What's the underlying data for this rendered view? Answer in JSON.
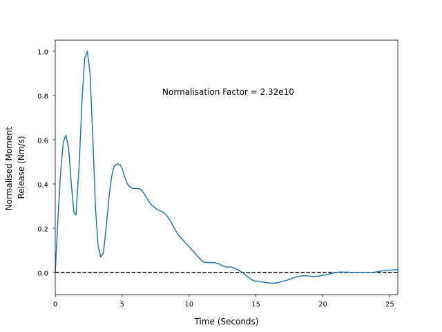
{
  "chart_data": {
    "type": "line",
    "xlabel": "Time (Seconds)",
    "ylabel_lines": [
      "Normalised Moment",
      "Release (Nm/s)"
    ],
    "annotation": "Normalisation Factor = 2.32e10",
    "xlim": [
      0,
      25.6
    ],
    "ylim": [
      -0.1,
      1.05
    ],
    "x_ticks": [
      0,
      5,
      10,
      15,
      20,
      25
    ],
    "x_tick_labels": [
      "0",
      "5",
      "10",
      "15",
      "20",
      "25"
    ],
    "y_ticks": [
      0.0,
      0.2,
      0.4,
      0.6,
      0.8,
      1.0
    ],
    "y_tick_labels": [
      "0.0",
      "0.2",
      "0.4",
      "0.6",
      "0.8",
      "1.0"
    ],
    "grid": false,
    "reference_line": {
      "y": 0,
      "style": "dashed",
      "color": "#000000"
    },
    "series": [
      {
        "color": "#1f77b4",
        "x": [
          0,
          0.2,
          0.4,
          0.6,
          0.8,
          1.0,
          1.2,
          1.4,
          1.55,
          1.8,
          2.0,
          2.2,
          2.4,
          2.6,
          2.8,
          3.0,
          3.2,
          3.4,
          3.6,
          3.8,
          4.0,
          4.2,
          4.4,
          4.6,
          4.8,
          5.0,
          5.2,
          5.4,
          5.6,
          5.8,
          6.0,
          6.2,
          6.4,
          6.6,
          6.8,
          7.0,
          7.2,
          7.4,
          7.6,
          7.8,
          8.0,
          8.3,
          8.6,
          8.9,
          9.2,
          9.5,
          9.8,
          10.1,
          10.4,
          10.7,
          11.0,
          11.3,
          11.6,
          11.9,
          12.2,
          12.5,
          12.8,
          13.1,
          13.4,
          13.7,
          14.0,
          14.3,
          14.6,
          14.9,
          15.2,
          15.5,
          15.8,
          16.1,
          16.4,
          16.7,
          17.0,
          17.3,
          17.6,
          17.9,
          18.2,
          18.5,
          18.8,
          19.1,
          19.4,
          19.7,
          20.0,
          20.3,
          20.6,
          20.9,
          21.2,
          21.5,
          21.8,
          22.1,
          22.4,
          22.7,
          23.0,
          23.3,
          23.6,
          23.9,
          24.2,
          24.5,
          24.8,
          25.1,
          25.4,
          25.6
        ],
        "y": [
          0.0,
          0.24,
          0.45,
          0.59,
          0.62,
          0.56,
          0.4,
          0.27,
          0.26,
          0.5,
          0.78,
          0.97,
          1.0,
          0.9,
          0.62,
          0.3,
          0.12,
          0.07,
          0.09,
          0.2,
          0.33,
          0.43,
          0.48,
          0.49,
          0.49,
          0.47,
          0.43,
          0.4,
          0.385,
          0.38,
          0.38,
          0.38,
          0.375,
          0.36,
          0.34,
          0.32,
          0.305,
          0.295,
          0.285,
          0.28,
          0.275,
          0.26,
          0.235,
          0.2,
          0.17,
          0.15,
          0.13,
          0.11,
          0.09,
          0.07,
          0.05,
          0.045,
          0.045,
          0.045,
          0.04,
          0.03,
          0.025,
          0.025,
          0.02,
          0.01,
          0.0,
          -0.015,
          -0.03,
          -0.038,
          -0.04,
          -0.043,
          -0.045,
          -0.048,
          -0.048,
          -0.045,
          -0.04,
          -0.035,
          -0.028,
          -0.022,
          -0.018,
          -0.015,
          -0.015,
          -0.017,
          -0.018,
          -0.016,
          -0.013,
          -0.01,
          -0.005,
          0.0,
          0.002,
          0.002,
          0.002,
          0.001,
          0.0,
          0.0,
          0.0,
          -0.001,
          0.0,
          0.002,
          0.005,
          0.008,
          0.01,
          0.011,
          0.012,
          0.012
        ]
      }
    ]
  }
}
